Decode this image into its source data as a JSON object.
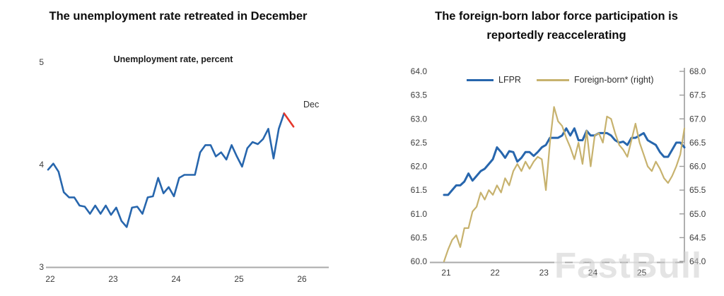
{
  "watermark": "FastBull",
  "colors": {
    "line_blue": "#2766ad",
    "line_tan": "#c7b26e",
    "line_red": "#e5372b",
    "axis_gray": "#a9a9a9",
    "right_axis_gray": "#9c9c9c",
    "tick_text": "#3d3d3d",
    "faded_tick_text": "#b6b6b6"
  },
  "chart_data": [
    {
      "type": "line",
      "title": "The unemployment rate retreated in December",
      "subtitle": "Unemployment rate, percent",
      "annotation": "Dec",
      "xlabel": "",
      "ylabel": "",
      "x_ticks": [
        22,
        23,
        24,
        25,
        26
      ],
      "y_ticks": [
        3,
        4,
        5
      ],
      "xlim": [
        22,
        26.45
      ],
      "ylim": [
        3,
        5
      ],
      "x_start": 22.0,
      "x_step": 0.083333,
      "legend_position": "none",
      "grid": false,
      "series": [
        {
          "name": "unemployment_rate",
          "color": "#2766ad",
          "values": [
            3.95,
            4.01,
            3.93,
            3.73,
            3.68,
            3.68,
            3.6,
            3.59,
            3.52,
            3.6,
            3.52,
            3.6,
            3.51,
            3.58,
            3.45,
            3.39,
            3.58,
            3.59,
            3.52,
            3.68,
            3.69,
            3.87,
            3.72,
            3.78,
            3.69,
            3.87,
            3.9,
            3.9,
            3.9,
            4.12,
            4.19,
            4.19,
            4.08,
            4.12,
            4.05,
            4.19,
            4.08,
            3.98,
            4.16,
            4.22,
            4.2,
            4.25,
            4.35,
            4.06,
            4.35,
            4.5
          ]
        },
        {
          "name": "december_decline",
          "color": "#e5372b",
          "points": [
            [
              25.75,
              4.5
            ],
            [
              25.9,
              4.37
            ]
          ]
        }
      ]
    },
    {
      "type": "line",
      "dual_axis": true,
      "title": "The foreign-born labor force participation is reportedly reaccelerating",
      "xlabel": "",
      "x_ticks": [
        21,
        22,
        23,
        24,
        25
      ],
      "faded_x_ticks": [
        24,
        25
      ],
      "left_y_ticks": [
        64.0,
        63.5,
        63.0,
        62.5,
        62.0,
        61.5,
        61.0,
        60.5,
        60.0
      ],
      "right_y_ticks": [
        68.0,
        67.5,
        67.0,
        66.5,
        66.0,
        65.5,
        65.0,
        64.5,
        64.0
      ],
      "xlim": [
        21,
        25.92
      ],
      "left_ylim": [
        60.0,
        64.0
      ],
      "right_ylim": [
        64.0,
        68.0
      ],
      "x_start": 21.0,
      "x_step": 0.083333,
      "legend_position": "top",
      "grid": false,
      "series": [
        {
          "name": "LFPR",
          "axis": "left",
          "color": "#2766ad",
          "values": [
            61.4,
            61.4,
            61.5,
            61.6,
            61.6,
            61.68,
            61.85,
            61.7,
            61.8,
            61.9,
            61.95,
            62.05,
            62.15,
            62.4,
            62.3,
            62.18,
            62.32,
            62.3,
            62.1,
            62.18,
            62.3,
            62.3,
            62.22,
            62.3,
            62.4,
            62.45,
            62.6,
            62.6,
            62.6,
            62.65,
            62.8,
            62.65,
            62.8,
            62.55,
            62.55,
            62.75,
            62.65,
            62.65,
            62.7,
            62.7,
            62.7,
            62.65,
            62.55,
            62.5,
            62.52,
            62.45,
            62.6,
            62.6,
            62.65,
            62.7,
            62.55,
            62.5,
            62.45,
            62.3,
            62.2,
            62.2,
            62.35,
            62.5,
            62.5,
            62.4
          ]
        },
        {
          "name": "Foreign-born* (right)",
          "axis": "right",
          "color": "#c7b26e",
          "values": [
            64.0,
            64.25,
            64.45,
            64.55,
            64.3,
            64.7,
            64.7,
            65.05,
            65.15,
            65.45,
            65.3,
            65.5,
            65.4,
            65.6,
            65.45,
            65.75,
            65.6,
            65.9,
            66.05,
            65.9,
            66.1,
            65.95,
            66.1,
            66.2,
            66.15,
            65.5,
            66.5,
            67.25,
            66.95,
            66.85,
            66.6,
            66.4,
            66.15,
            66.5,
            66.05,
            66.75,
            66.0,
            66.65,
            66.7,
            66.5,
            67.05,
            67.0,
            66.7,
            66.45,
            66.35,
            66.2,
            66.55,
            66.9,
            66.5,
            66.25,
            66.0,
            65.9,
            66.1,
            65.95,
            65.75,
            65.65,
            65.8,
            66.0,
            66.25,
            66.8
          ]
        }
      ]
    }
  ]
}
